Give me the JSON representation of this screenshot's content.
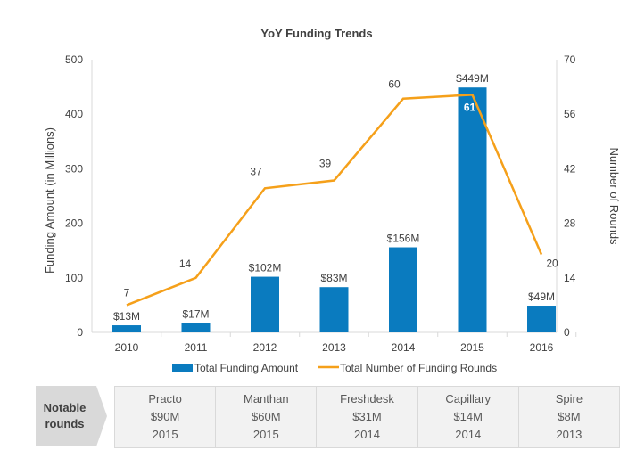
{
  "chart_data": {
    "type": "bar+line",
    "title": "YoY Funding Trends",
    "categories": [
      "2010",
      "2011",
      "2012",
      "2013",
      "2014",
      "2015",
      "2016"
    ],
    "series": [
      {
        "name": "Total Funding Amount",
        "type": "bar",
        "axis": "left",
        "values": [
          13,
          17,
          102,
          83,
          156,
          449,
          49
        ],
        "labels": [
          "$13M",
          "$17M",
          "$102M",
          "$83M",
          "$156M",
          "$449M",
          "$49M"
        ],
        "color": "#0a7bbf"
      },
      {
        "name": "Total Number of Funding Rounds",
        "type": "line",
        "axis": "right",
        "values": [
          7,
          14,
          37,
          39,
          60,
          61,
          20
        ],
        "color": "#f5a01a"
      }
    ],
    "ylabel": "Funding Amount (in Millions)",
    "y2label": "Number of Rounds",
    "ylim": [
      0,
      500
    ],
    "yticks": [
      "0",
      "100",
      "200",
      "300",
      "400",
      "500"
    ],
    "y2lim": [
      0,
      70
    ],
    "y2ticks": [
      "0",
      "14",
      "28",
      "42",
      "56",
      "70"
    ],
    "legend": "bottom",
    "grid": false
  },
  "notable": {
    "label_line1": "Notable",
    "label_line2": "rounds",
    "rounds": [
      {
        "company": "Practo",
        "amount": "$90M",
        "year": "2015"
      },
      {
        "company": "Manthan",
        "amount": "$60M",
        "year": "2015"
      },
      {
        "company": "Freshdesk",
        "amount": "$31M",
        "year": "2014"
      },
      {
        "company": "Capillary",
        "amount": "$14M",
        "year": "2014"
      },
      {
        "company": "Spire",
        "amount": "$8M",
        "year": "2013"
      }
    ]
  }
}
